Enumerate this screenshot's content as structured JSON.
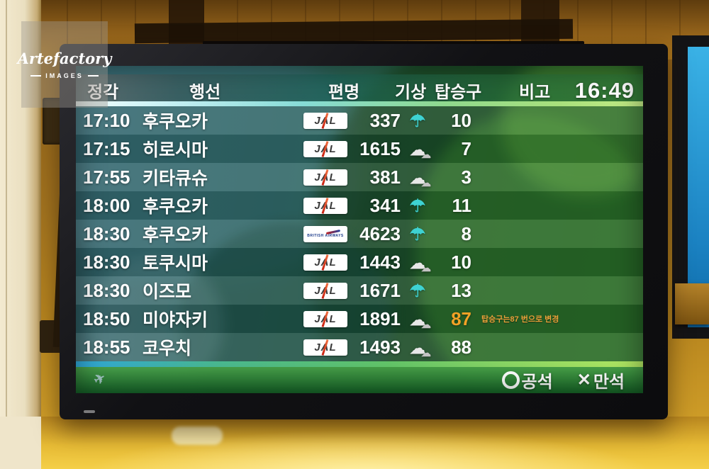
{
  "watermark": {
    "brand": "Artefactory",
    "sub": "IMAGES"
  },
  "board": {
    "header": {
      "time": "정각",
      "destination": "행선",
      "flight": "편명",
      "weather": "기상",
      "gate": "탑승구",
      "remarks": "비고",
      "clock": "16:49"
    },
    "rows": [
      {
        "time": "17:10",
        "destination": "후쿠오카",
        "airline": "JAL",
        "flight": "337",
        "weather": "rain",
        "gate": "10",
        "gate_alert": false,
        "remark": ""
      },
      {
        "time": "17:15",
        "destination": "히로시마",
        "airline": "JAL",
        "flight": "1615",
        "weather": "cloudy",
        "gate": "7",
        "gate_alert": false,
        "remark": ""
      },
      {
        "time": "17:55",
        "destination": "키타큐슈",
        "airline": "JAL",
        "flight": "381",
        "weather": "cloudy",
        "gate": "3",
        "gate_alert": false,
        "remark": ""
      },
      {
        "time": "18:00",
        "destination": "후쿠오카",
        "airline": "JAL",
        "flight": "341",
        "weather": "rain",
        "gate": "11",
        "gate_alert": false,
        "remark": ""
      },
      {
        "time": "18:30",
        "destination": "후쿠오카",
        "airline": "BA",
        "flight": "4623",
        "weather": "rain",
        "gate": "8",
        "gate_alert": false,
        "remark": ""
      },
      {
        "time": "18:30",
        "destination": "토쿠시마",
        "airline": "JAL",
        "flight": "1443",
        "weather": "cloudy",
        "gate": "10",
        "gate_alert": false,
        "remark": ""
      },
      {
        "time": "18:30",
        "destination": "이즈모",
        "airline": "JAL",
        "flight": "1671",
        "weather": "rain",
        "gate": "13",
        "gate_alert": false,
        "remark": ""
      },
      {
        "time": "18:50",
        "destination": "미야자키",
        "airline": "JAL",
        "flight": "1891",
        "weather": "cloudy",
        "gate": "87",
        "gate_alert": true,
        "remark": "탑승구는87 번으로 변경"
      },
      {
        "time": "18:55",
        "destination": "코우치",
        "airline": "JAL",
        "flight": "1493",
        "weather": "cloudy",
        "gate": "88",
        "gate_alert": false,
        "remark": ""
      }
    ],
    "legend": {
      "vacant": "공석",
      "full": "만석"
    },
    "airlines": {
      "jal": "JAL",
      "ba": "BRITISH AIRWAYS"
    },
    "icons": {
      "rain": "☂",
      "cloud": "☁",
      "full_symbol": "✕",
      "plane": "✈"
    },
    "colors": {
      "gate_alert": "#f2a126",
      "rain_icon": "#3ed2d2",
      "cloud_icon": "#e8e8e8",
      "footer_green": "#1c6728"
    }
  }
}
